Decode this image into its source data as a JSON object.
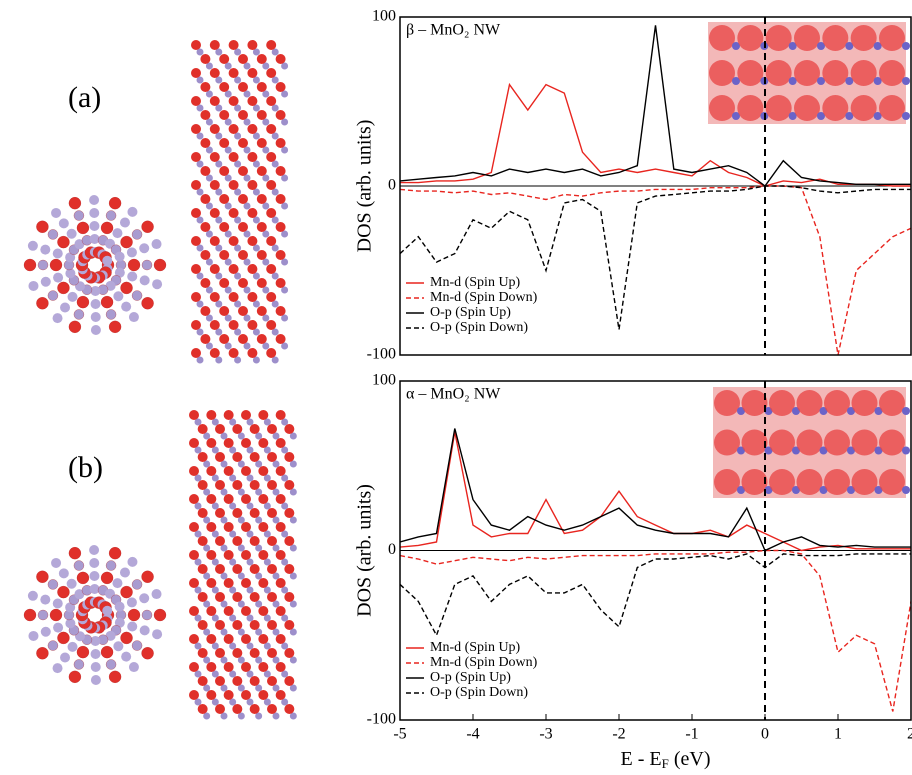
{
  "panels": [
    "(a)",
    "(b)"
  ],
  "chart_data": [
    {
      "type": "line",
      "title": "β – MnO₂ NW",
      "ylabel": "DOS (arb. units)",
      "xlim": [
        -5,
        2
      ],
      "ylim": [
        -100,
        100
      ],
      "yticks": [
        -100,
        0,
        100
      ],
      "x": [
        -5,
        -4.75,
        -4.5,
        -4.25,
        -4,
        -3.75,
        -3.5,
        -3.25,
        -3,
        -2.75,
        -2.5,
        -2.25,
        -2,
        -1.75,
        -1.5,
        -1.25,
        -1,
        -0.75,
        -0.5,
        -0.25,
        0,
        0.25,
        0.5,
        0.75,
        1,
        1.25,
        1.5,
        1.75,
        2
      ],
      "series": [
        {
          "name": "Mn-d (Spin Up)",
          "color": "#e8251f",
          "dashed": false,
          "values": [
            2,
            2,
            3,
            3,
            4,
            8,
            60,
            45,
            60,
            55,
            20,
            8,
            10,
            8,
            10,
            8,
            6,
            15,
            8,
            5,
            0,
            3,
            2,
            4,
            1,
            1,
            1,
            0,
            0
          ]
        },
        {
          "name": "Mn-d (Spin Down)",
          "color": "#e8251f",
          "dashed": true,
          "values": [
            -2,
            -3,
            -3,
            -4,
            -3,
            -5,
            -4,
            -6,
            -8,
            -5,
            -6,
            -4,
            -3,
            -3,
            -2,
            -2,
            -2,
            -1,
            -1,
            -1,
            0,
            0,
            -1,
            -30,
            -100,
            -50,
            -40,
            -30,
            -25
          ]
        },
        {
          "name": "O-p (Spin Up)",
          "color": "#000000",
          "dashed": false,
          "values": [
            3,
            4,
            5,
            6,
            8,
            6,
            10,
            8,
            10,
            8,
            10,
            6,
            8,
            12,
            95,
            10,
            8,
            10,
            12,
            8,
            0,
            15,
            5,
            3,
            2,
            1,
            1,
            1,
            1
          ]
        },
        {
          "name": "O-p (Spin Down)",
          "color": "#000000",
          "dashed": true,
          "values": [
            -40,
            -30,
            -45,
            -40,
            -20,
            -25,
            -15,
            -20,
            -50,
            -10,
            -8,
            -15,
            -85,
            -10,
            -6,
            -5,
            -4,
            -3,
            -3,
            -2,
            0,
            0,
            -1,
            -3,
            -4,
            -3,
            -2,
            -2,
            -2
          ]
        }
      ]
    },
    {
      "type": "line",
      "title": "α – MnO₂ NW",
      "ylabel": "DOS (arb. units)",
      "xlabel": "E - E",
      "xlabel_sub": "F",
      "xlabel_end": " (eV)",
      "xlim": [
        -5,
        2
      ],
      "ylim": [
        -100,
        100
      ],
      "yticks": [
        -100,
        0,
        100
      ],
      "xticks": [
        -5,
        -4,
        -3,
        -2,
        -1,
        0,
        1,
        2
      ],
      "x": [
        -5,
        -4.75,
        -4.5,
        -4.25,
        -4,
        -3.75,
        -3.5,
        -3.25,
        -3,
        -2.75,
        -2.5,
        -2.25,
        -2,
        -1.75,
        -1.5,
        -1.25,
        -1,
        -0.75,
        -0.5,
        -0.25,
        0,
        0.25,
        0.5,
        0.75,
        1,
        1.25,
        1.5,
        1.75,
        2
      ],
      "series": [
        {
          "name": "Mn-d (Spin Up)",
          "color": "#e8251f",
          "dashed": false,
          "values": [
            2,
            3,
            5,
            70,
            15,
            8,
            10,
            10,
            30,
            10,
            12,
            20,
            35,
            20,
            15,
            10,
            10,
            12,
            8,
            15,
            10,
            5,
            0,
            2,
            3,
            1,
            1,
            1,
            1
          ]
        },
        {
          "name": "Mn-d (Spin Down)",
          "color": "#e8251f",
          "dashed": true,
          "values": [
            -3,
            -5,
            -8,
            -6,
            -4,
            -5,
            -6,
            -4,
            -5,
            -4,
            -3,
            -3,
            -3,
            -3,
            -2,
            -2,
            -2,
            -2,
            -1,
            -1,
            0,
            0,
            -2,
            -15,
            -60,
            -50,
            -55,
            -95,
            -30
          ]
        },
        {
          "name": "O-p (Spin Up)",
          "color": "#000000",
          "dashed": false,
          "values": [
            5,
            8,
            10,
            72,
            30,
            15,
            12,
            20,
            15,
            12,
            15,
            20,
            25,
            15,
            12,
            10,
            10,
            10,
            8,
            25,
            0,
            5,
            8,
            3,
            2,
            3,
            2,
            2,
            2
          ]
        },
        {
          "name": "O-p (Spin Down)",
          "color": "#000000",
          "dashed": true,
          "values": [
            -20,
            -30,
            -50,
            -20,
            -15,
            -30,
            -20,
            -15,
            -25,
            -25,
            -20,
            -35,
            -45,
            -10,
            -5,
            -5,
            -4,
            -3,
            -5,
            -2,
            -10,
            -2,
            -3,
            -3,
            -3,
            -2,
            -2,
            -2,
            -2
          ]
        }
      ]
    }
  ]
}
